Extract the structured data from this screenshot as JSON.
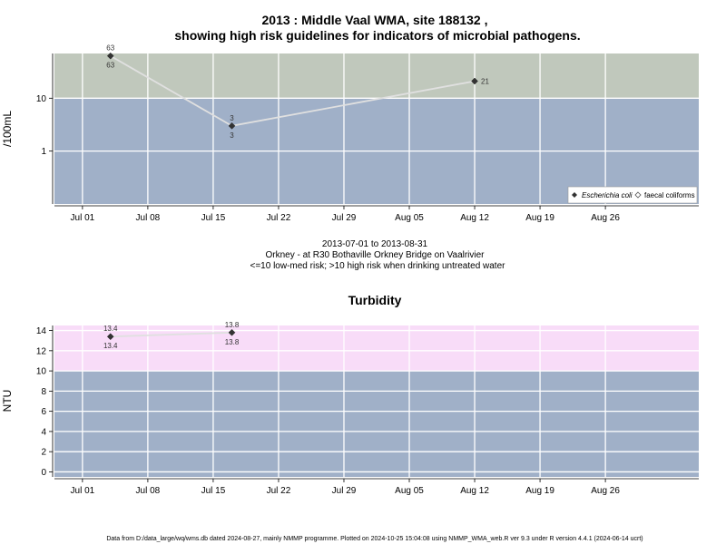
{
  "chart_data": [
    {
      "type": "line",
      "title": "2013 : Middle Vaal WMA, site 188132 ,",
      "subtitle": "showing high risk guidelines for indicators of microbial pathogens.",
      "ylabel": "/100mL",
      "yscale": "log",
      "ylim": [
        0.1,
        70
      ],
      "y_ticks": [
        1,
        10
      ],
      "y_tick_labels": [
        "1",
        "10"
      ],
      "x_ticks": [
        "Jul 01",
        "Jul 08",
        "Jul 15",
        "Jul 22",
        "Jul 29",
        "Aug 05",
        "Aug 12",
        "Aug 19",
        "Aug 26"
      ],
      "x_tick_dates": [
        "2013-07-01",
        "2013-07-08",
        "2013-07-15",
        "2013-07-22",
        "2013-07-29",
        "2013-08-05",
        "2013-08-12",
        "2013-08-19",
        "2013-08-26"
      ],
      "xlim": [
        "2013-06-28",
        "2013-09-05"
      ],
      "grid": true,
      "bands": [
        {
          "from": 0.1,
          "to": 10,
          "color": "#a0b0c8"
        },
        {
          "from": 10,
          "to": 70,
          "color": "#c0c8bc"
        }
      ],
      "series": [
        {
          "name": "Escherichia coli",
          "marker": "filled-diamond",
          "line_color": "#e0e0e0",
          "points": [
            {
              "x": "2013-07-04",
              "y": 63,
              "label_top": "63",
              "label_bottom": "63"
            },
            {
              "x": "2013-07-17",
              "y": 3,
              "label_top": "3",
              "label_bottom": "3"
            },
            {
              "x": "2013-08-12",
              "y": 21,
              "label_right": "21"
            }
          ]
        },
        {
          "name": "faecal coliforms",
          "marker": "open-diamond",
          "points": []
        }
      ],
      "legend": "bottom-right",
      "caption_lines": [
        "2013-07-01 to 2013-08-31",
        "Orkney - at R30 Bothaville Orkney Bridge on Vaalrivier",
        "<=10 low-med risk; >10 high risk when drinking untreated water"
      ]
    },
    {
      "type": "line",
      "title": "Turbidity",
      "ylabel": "NTU",
      "ylim": [
        -0.5,
        14.5
      ],
      "y_ticks": [
        0,
        2,
        4,
        6,
        8,
        10,
        12,
        14
      ],
      "x_ticks": [
        "Jul 01",
        "Jul 08",
        "Jul 15",
        "Jul 22",
        "Jul 29",
        "Aug 05",
        "Aug 12",
        "Aug 19",
        "Aug 26"
      ],
      "x_tick_dates": [
        "2013-07-01",
        "2013-07-08",
        "2013-07-15",
        "2013-07-22",
        "2013-07-29",
        "2013-08-05",
        "2013-08-12",
        "2013-08-19",
        "2013-08-26"
      ],
      "xlim": [
        "2013-06-28",
        "2013-09-05"
      ],
      "grid": true,
      "bands": [
        {
          "from": -0.5,
          "to": 10,
          "color": "#a0b0c8"
        },
        {
          "from": 10,
          "to": 14.5,
          "color": "#f8dcf8"
        }
      ],
      "series": [
        {
          "marker": "filled-diamond",
          "line_color": "#e0e0e0",
          "points": [
            {
              "x": "2013-07-04",
              "y": 13.4,
              "label_top": "13.4",
              "label_bottom": "13.4"
            },
            {
              "x": "2013-07-17",
              "y": 13.8,
              "label_top": "13.8",
              "label_bottom": "13.8"
            }
          ]
        }
      ]
    }
  ],
  "footer": "Data from D:/data_large/wq/wms.db dated 2024-08-27, mainly NMMP programme. Plotted on 2024-10-25 15:04:08 using NMMP_WMA_web.R ver 9.3 under R version 4.4.1 (2024-06-14 ucrt)"
}
